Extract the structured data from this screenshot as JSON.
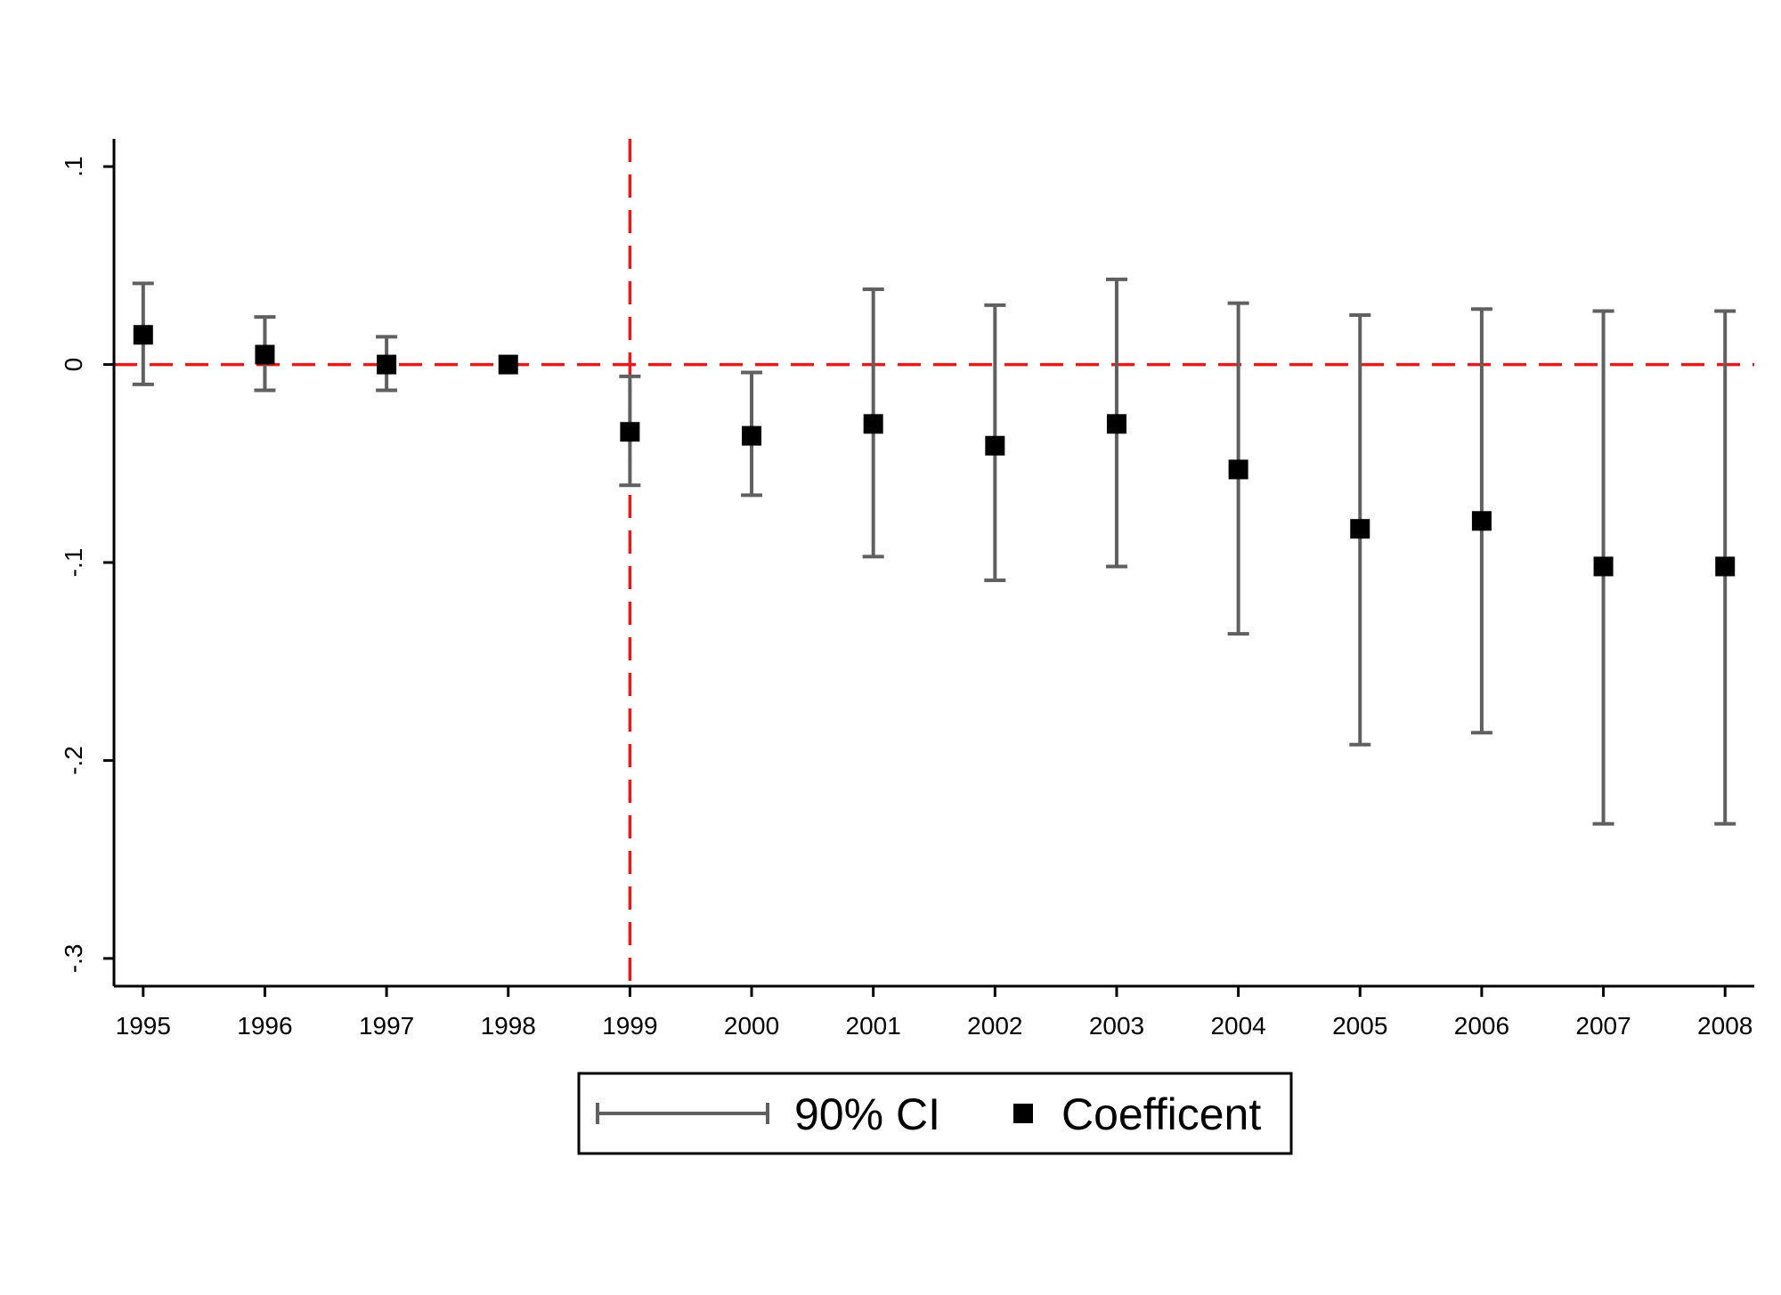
{
  "chart_data": {
    "type": "scatter",
    "title": "",
    "xlabel": "",
    "ylabel": "",
    "x": [
      1995,
      1996,
      1997,
      1998,
      1999,
      2000,
      2001,
      2002,
      2003,
      2004,
      2005,
      2006,
      2007,
      2008
    ],
    "x_tick_labels": [
      "1995",
      "1996",
      "1997",
      "1998",
      "1999",
      "2000",
      "2001",
      "2002",
      "2003",
      "2004",
      "2005",
      "2006",
      "2007",
      "2008"
    ],
    "series": [
      {
        "name": "Coefficent",
        "values": [
          0.015,
          0.005,
          0.0,
          0.0,
          -0.034,
          -0.036,
          -0.03,
          -0.041,
          -0.03,
          -0.053,
          -0.083,
          -0.079,
          -0.102,
          -0.102
        ]
      },
      {
        "name": "90% CI",
        "lower": [
          -0.01,
          -0.013,
          -0.013,
          0.0,
          -0.061,
          -0.066,
          -0.097,
          -0.109,
          -0.102,
          -0.136,
          -0.192,
          -0.186,
          -0.232,
          -0.232
        ],
        "upper": [
          0.041,
          0.024,
          0.014,
          0.0,
          -0.006,
          -0.004,
          0.038,
          0.03,
          0.043,
          0.031,
          0.025,
          0.028,
          0.027,
          0.027
        ]
      }
    ],
    "y_ticks": [
      0.1,
      0,
      -0.1,
      -0.2,
      -0.3
    ],
    "y_tick_labels": [
      ".1",
      "0",
      "-.1",
      "-.2",
      "-.3"
    ],
    "ylim": [
      -0.314,
      0.114
    ],
    "xlim": [
      1994.76,
      2008.24
    ],
    "reference_lines": [
      {
        "axis": "y",
        "value": 0,
        "style": "dashed",
        "color": "#e8191b"
      },
      {
        "axis": "x",
        "value": 1999,
        "style": "dashed",
        "color": "#e8191b"
      }
    ],
    "grid": false,
    "legend": {
      "placement": "bottom-center",
      "entries": [
        "90% CI",
        "Coefficent"
      ]
    },
    "colors": {
      "marker": "#000000",
      "errorbar": "#606060",
      "reference": "#e8191b"
    }
  }
}
